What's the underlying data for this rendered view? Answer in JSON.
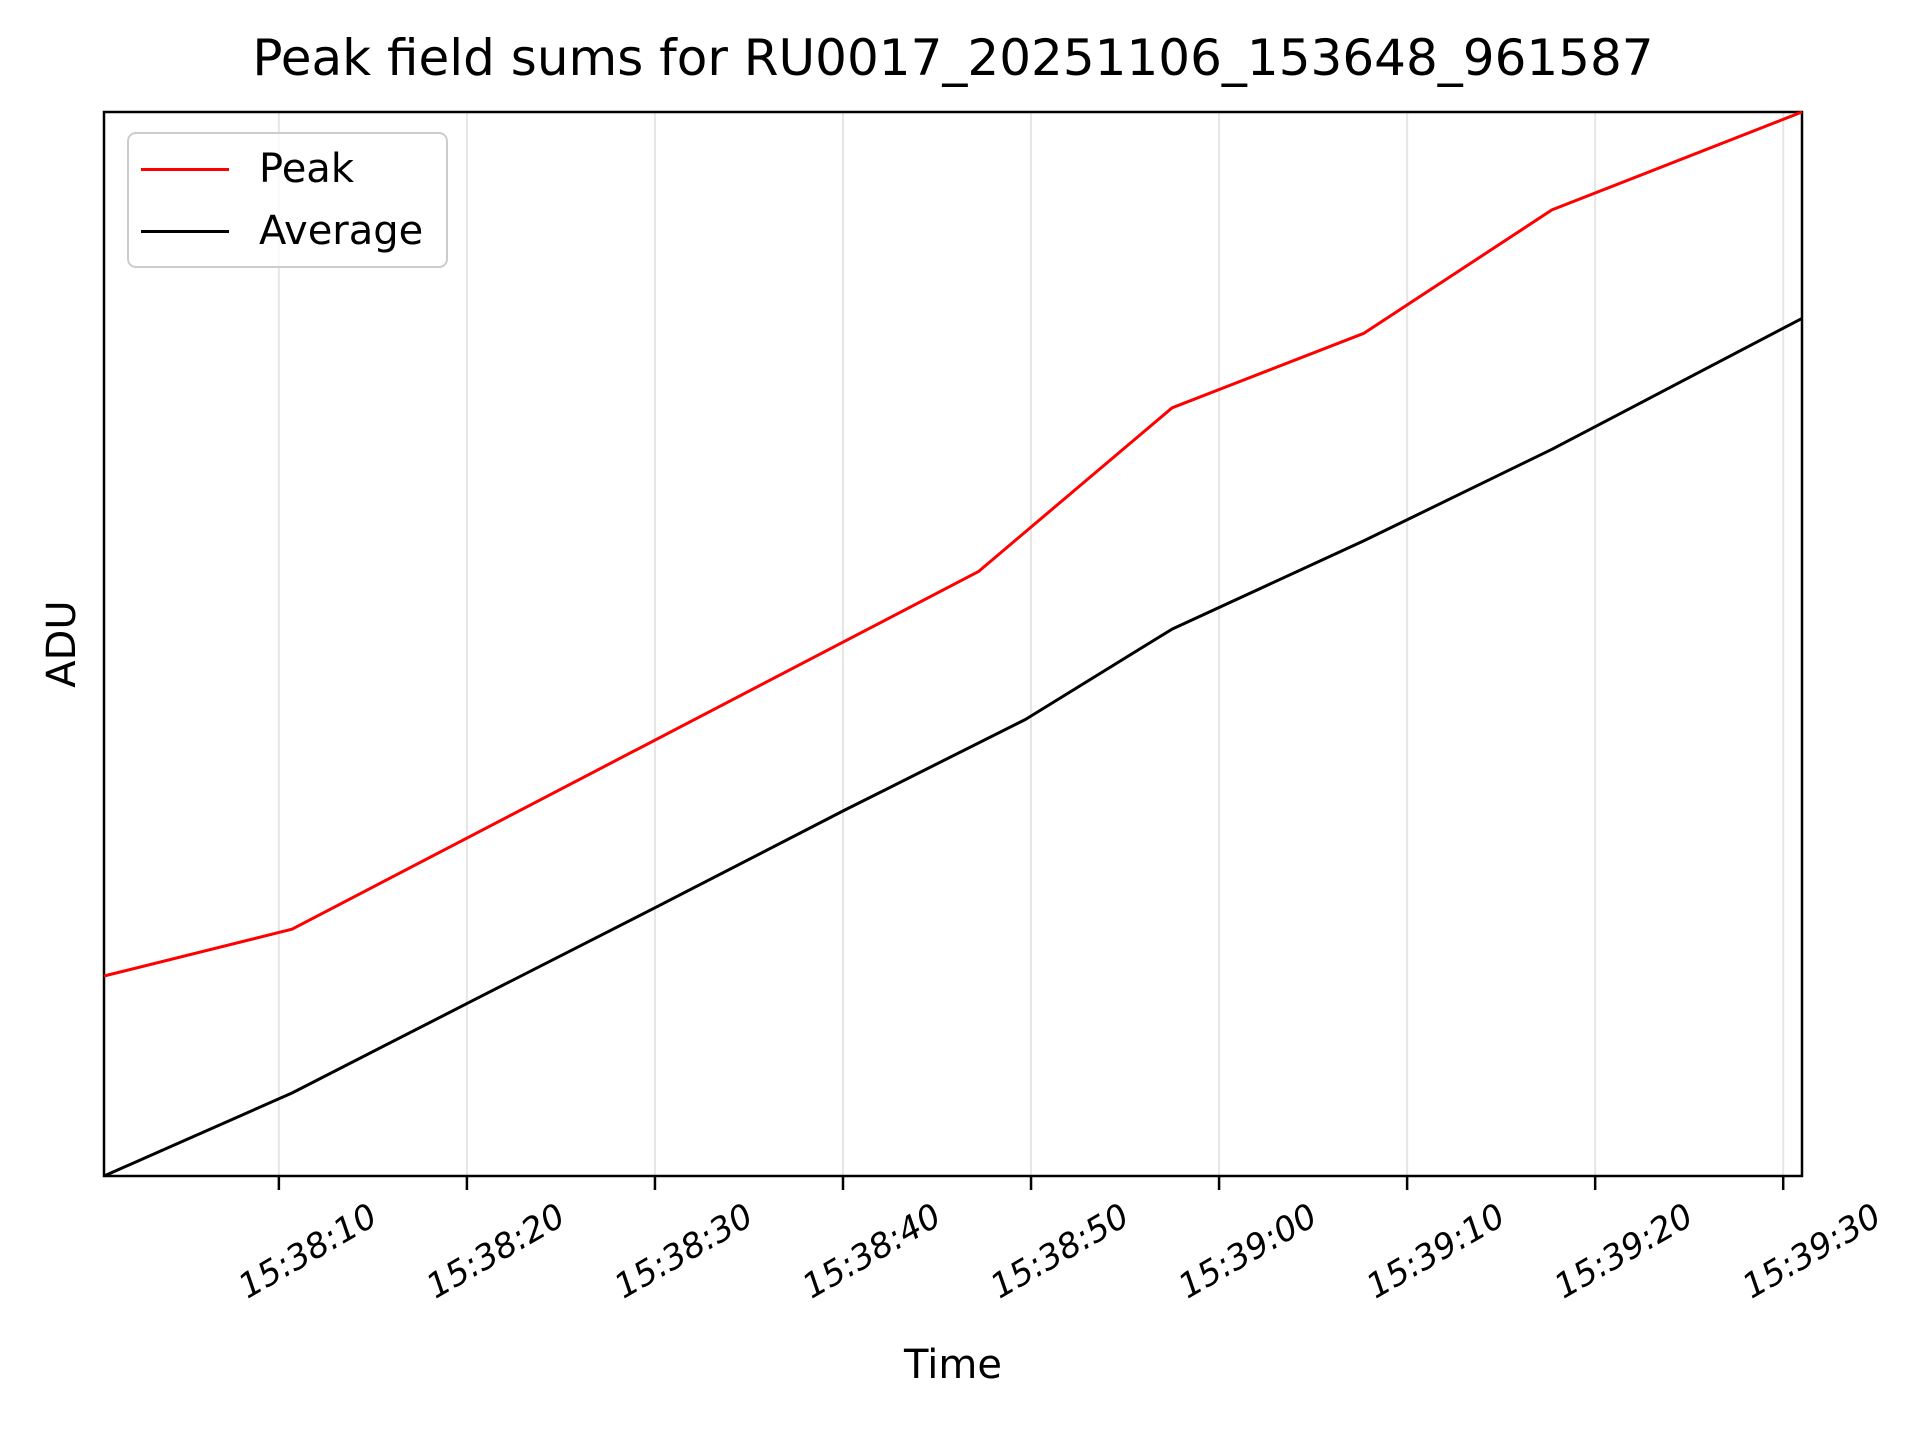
{
  "chart_data": {
    "type": "line",
    "title": "Peak field sums for RU0017_20251106_153648_961587",
    "xlabel": "Time",
    "ylabel": "ADU",
    "x_tick_labels": [
      "15:38:10",
      "15:38:20",
      "15:38:30",
      "15:38:40",
      "15:38:50",
      "15:39:00",
      "15:39:10",
      "15:39:20",
      "15:39:30"
    ],
    "x_ticks_seconds": [
      9.3,
      19.3,
      29.3,
      39.3,
      49.3,
      59.3,
      69.3,
      79.3,
      89.3
    ],
    "x_domain_seconds": [
      0,
      90.3
    ],
    "x_domain_clock_estimate": [
      "15:38:01",
      "15:39:31"
    ],
    "y_tick_labels": [],
    "y_axis_note": "y axis shows no tick marks or numeric labels; series values are normalized 0-1 across the plotted ADU range",
    "ylim_normalized": [
      0,
      1
    ],
    "grid": "vertical gridlines at each x tick only",
    "legend_position": "upper left",
    "series": [
      {
        "name": "Peak",
        "color": "#ff0000",
        "points": [
          [
            0,
            0.188
          ],
          [
            10,
            0.232
          ],
          [
            46.5,
            0.568
          ],
          [
            56.8,
            0.722
          ],
          [
            67,
            0.792
          ],
          [
            77,
            0.908
          ],
          [
            90.3,
            1.0
          ]
        ]
      },
      {
        "name": "Average",
        "color": "#000000",
        "points": [
          [
            0,
            0.0
          ],
          [
            10,
            0.078
          ],
          [
            19.4,
            0.163
          ],
          [
            29.4,
            0.253
          ],
          [
            39.4,
            0.344
          ],
          [
            49,
            0.429
          ],
          [
            56.8,
            0.514
          ],
          [
            67,
            0.597
          ],
          [
            77,
            0.683
          ],
          [
            90.3,
            0.806
          ]
        ]
      }
    ],
    "colors": {
      "frame": "#000000",
      "grid": "#e6e6e6",
      "text": "#000000",
      "background": "#ffffff",
      "legend_border": "#cccccc"
    }
  }
}
